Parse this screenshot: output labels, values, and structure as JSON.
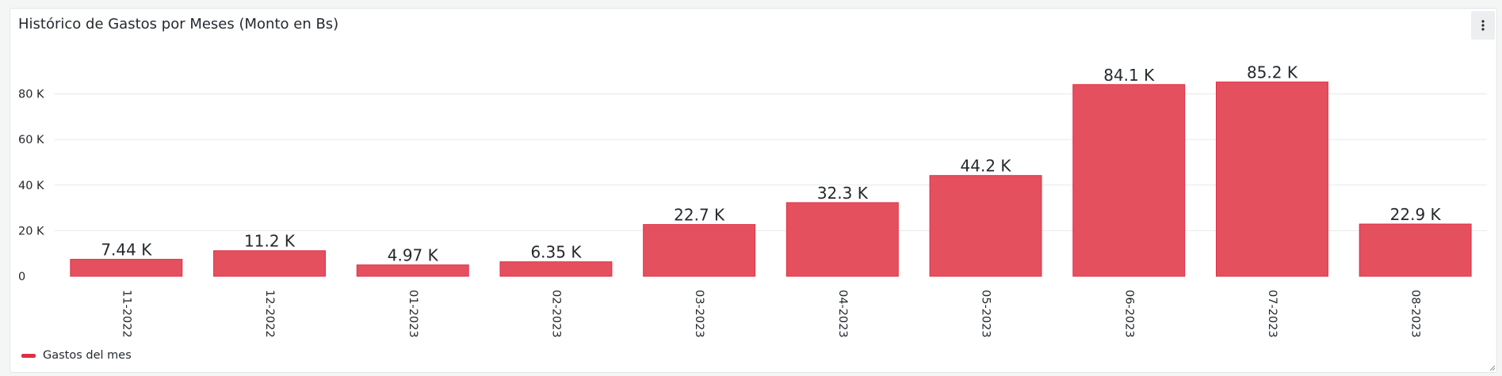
{
  "panel": {
    "title": "Histórico de Gastos por Meses (Monto en Bs)",
    "menu_icon": "kebab-vertical-icon",
    "resize_icon": "resize-corner-icon"
  },
  "colors": {
    "bar_fill": "#e5505f",
    "bar_stroke": "#e02f44",
    "grid": "#e6e8eb",
    "legend": "#e02f44"
  },
  "chart_data": {
    "type": "bar",
    "categories": [
      "11-2022",
      "12-2022",
      "01-2023",
      "02-2023",
      "03-2023",
      "04-2023",
      "05-2023",
      "06-2023",
      "07-2023",
      "08-2023"
    ],
    "series": [
      {
        "name": "Gastos del mes",
        "values": [
          7440,
          11200,
          4970,
          6350,
          22700,
          32300,
          44200,
          84100,
          85200,
          22900
        ],
        "value_labels": [
          "7.44 K",
          "11.2 K",
          "4.97 K",
          "6.35 K",
          "22.7 K",
          "32.3 K",
          "44.2 K",
          "84.1 K",
          "85.2 K",
          "22.9 K"
        ]
      }
    ],
    "y_ticks": [
      0,
      20000,
      40000,
      60000,
      80000
    ],
    "y_tick_labels": [
      "0",
      "20 K",
      "40 K",
      "60 K",
      "80 K"
    ],
    "ylim": [
      0,
      100000
    ],
    "grid": true,
    "legend_position": "bottom-left",
    "x_label_rotation": "vertical"
  }
}
